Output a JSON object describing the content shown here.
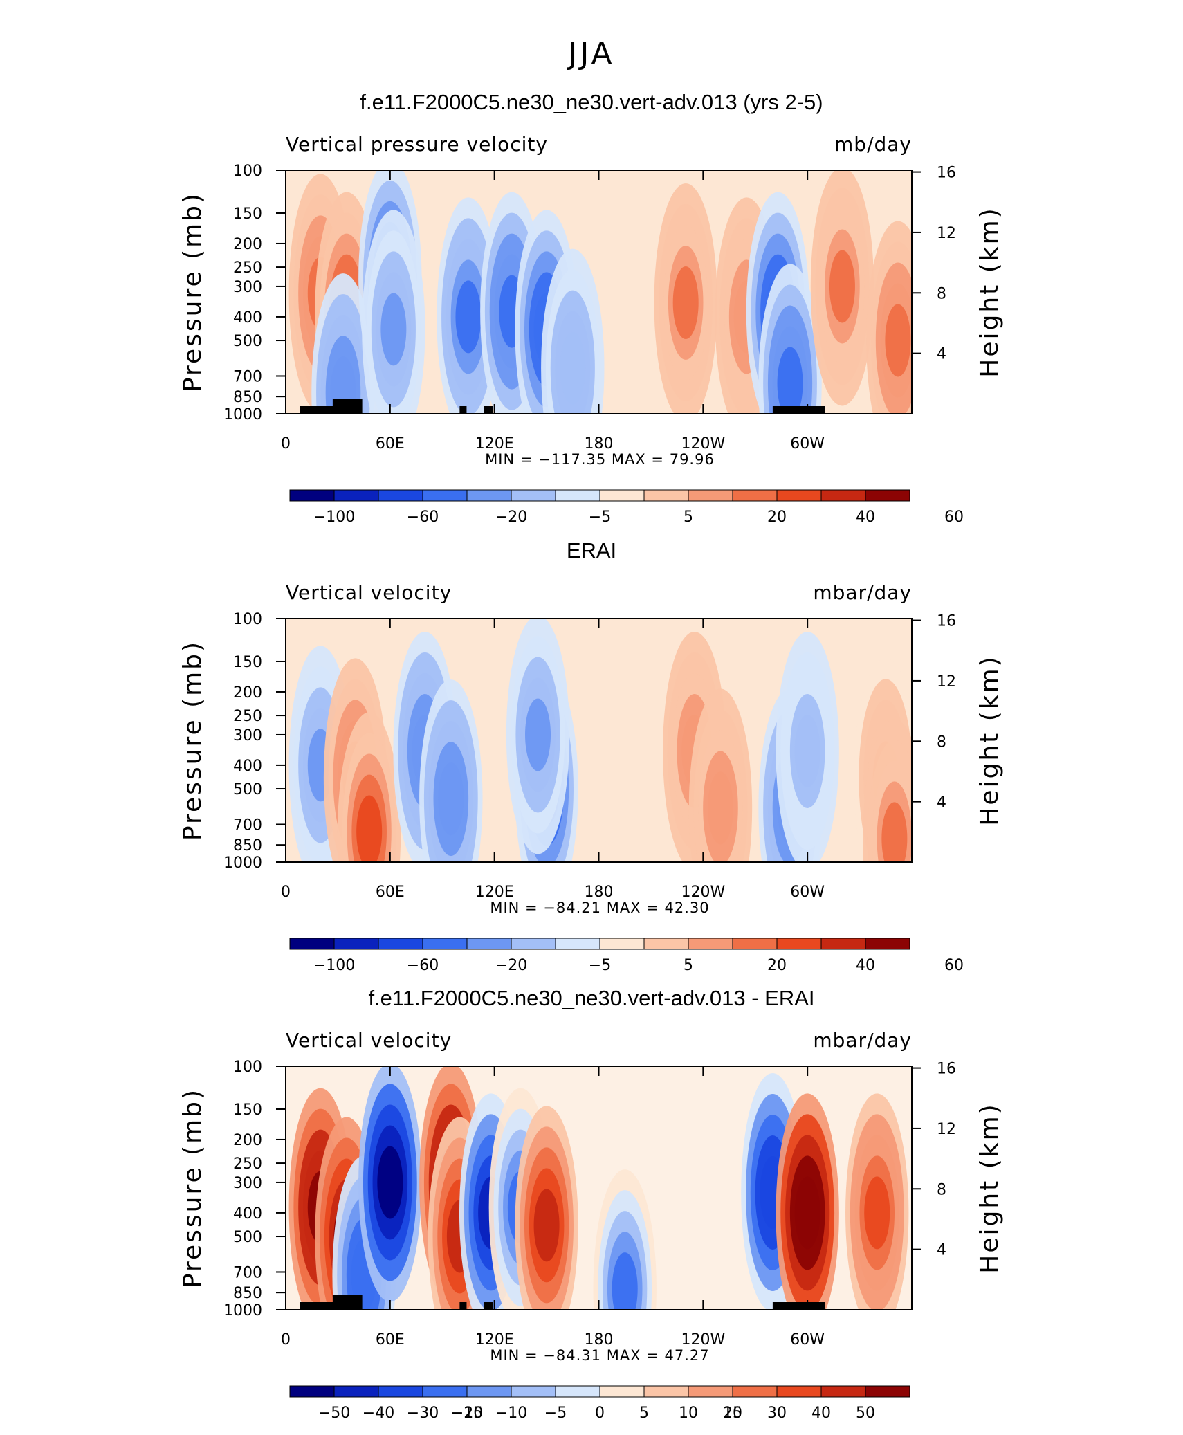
{
  "figure": {
    "title": "JJA"
  },
  "chart_data": [
    {
      "type": "heatmap",
      "title": "f.e11.F2000C5.ne30_ne30.vert-adv.013 (yrs 2-5)",
      "left_label": "Vertical pressure velocity",
      "right_label": "mb/day",
      "ylabel": "Pressure (mb)",
      "ylabel_right": "Height (km)",
      "x_ticks": [
        "0",
        "60E",
        "120E",
        "180",
        "120W",
        "60W"
      ],
      "x_tick_lon": [
        0,
        60,
        120,
        180,
        240,
        300
      ],
      "xlim": [
        0,
        360
      ],
      "y_ticks": [
        "100",
        "150",
        "200",
        "250",
        "300",
        "400",
        "500",
        "700",
        "850",
        "1000"
      ],
      "y_tick_p": [
        100,
        150,
        200,
        250,
        300,
        400,
        500,
        700,
        850,
        1000
      ],
      "ylim": [
        1000,
        100
      ],
      "y_scale": "log",
      "height_ticks": [
        "16",
        "12",
        "8",
        "4"
      ],
      "height_tick_km": [
        16,
        12,
        8,
        4
      ],
      "stats": "MIN = −117.35   MAX =   79.96",
      "min": -117.35,
      "max": 79.96,
      "colorbar_levels": [
        "−100",
        "−60",
        "−20",
        "−5",
        "5",
        "20",
        "40",
        "60"
      ],
      "features": [
        {
          "lon": 20,
          "p": 320,
          "value": 35
        },
        {
          "lon": 35,
          "p": 380,
          "value": 38
        },
        {
          "lon": 33,
          "p": 820,
          "value": -60
        },
        {
          "lon": 60,
          "p": 280,
          "value": -90
        },
        {
          "lon": 62,
          "p": 450,
          "value": -45
        },
        {
          "lon": 105,
          "p": 400,
          "value": -65
        },
        {
          "lon": 130,
          "p": 380,
          "value": -70
        },
        {
          "lon": 150,
          "p": 450,
          "value": -80
        },
        {
          "lon": 165,
          "p": 650,
          "value": -40
        },
        {
          "lon": 230,
          "p": 350,
          "value": 30
        },
        {
          "lon": 265,
          "p": 400,
          "value": 28
        },
        {
          "lon": 283,
          "p": 380,
          "value": -80
        },
        {
          "lon": 290,
          "p": 750,
          "value": -75
        },
        {
          "lon": 320,
          "p": 300,
          "value": 32
        },
        {
          "lon": 352,
          "p": 500,
          "value": 35
        }
      ]
    },
    {
      "type": "heatmap",
      "title": "ERAI",
      "left_label": "Vertical velocity",
      "right_label": "mbar/day",
      "ylabel": "Pressure (mb)",
      "ylabel_right": "Height (km)",
      "x_ticks": [
        "0",
        "60E",
        "120E",
        "180",
        "120W",
        "60W"
      ],
      "x_tick_lon": [
        0,
        60,
        120,
        180,
        240,
        300
      ],
      "xlim": [
        0,
        360
      ],
      "y_ticks": [
        "100",
        "150",
        "200",
        "250",
        "300",
        "400",
        "500",
        "700",
        "850",
        "1000"
      ],
      "y_tick_p": [
        100,
        150,
        200,
        250,
        300,
        400,
        500,
        700,
        850,
        1000
      ],
      "ylim": [
        1000,
        100
      ],
      "y_scale": "log",
      "height_ticks": [
        "16",
        "12",
        "8",
        "4"
      ],
      "height_tick_km": [
        16,
        12,
        8,
        4
      ],
      "stats": "MIN =  −84.21   MAX =   42.30",
      "min": -84.21,
      "max": 42.3,
      "colorbar_levels": [
        "−100",
        "−60",
        "−20",
        "−5",
        "5",
        "20",
        "40",
        "60"
      ],
      "features": [
        {
          "lon": 20,
          "p": 400,
          "value": -45
        },
        {
          "lon": 40,
          "p": 450,
          "value": 35
        },
        {
          "lon": 48,
          "p": 750,
          "value": 40
        },
        {
          "lon": 80,
          "p": 350,
          "value": -55
        },
        {
          "lon": 95,
          "p": 550,
          "value": -60
        },
        {
          "lon": 150,
          "p": 500,
          "value": -84
        },
        {
          "lon": 145,
          "p": 300,
          "value": -50
        },
        {
          "lon": 235,
          "p": 350,
          "value": 28
        },
        {
          "lon": 250,
          "p": 600,
          "value": 25
        },
        {
          "lon": 290,
          "p": 600,
          "value": -60
        },
        {
          "lon": 300,
          "p": 350,
          "value": -30
        },
        {
          "lon": 345,
          "p": 450,
          "value": 22
        },
        {
          "lon": 350,
          "p": 800,
          "value": 30
        }
      ]
    },
    {
      "type": "heatmap",
      "title": "f.e11.F2000C5.ne30_ne30.vert-adv.013 - ERAI",
      "left_label": "Vertical velocity",
      "right_label": "mbar/day",
      "ylabel": "Pressure (mb)",
      "ylabel_right": "Height (km)",
      "x_ticks": [
        "0",
        "60E",
        "120E",
        "180",
        "120W",
        "60W"
      ],
      "x_tick_lon": [
        0,
        60,
        120,
        180,
        240,
        300
      ],
      "xlim": [
        0,
        360
      ],
      "y_ticks": [
        "100",
        "150",
        "200",
        "250",
        "300",
        "400",
        "500",
        "700",
        "850",
        "1000"
      ],
      "y_tick_p": [
        100,
        150,
        200,
        250,
        300,
        400,
        500,
        700,
        850,
        1000
      ],
      "ylim": [
        1000,
        100
      ],
      "y_scale": "log",
      "height_ticks": [
        "16",
        "12",
        "8",
        "4"
      ],
      "height_tick_km": [
        16,
        12,
        8,
        4
      ],
      "stats": "MIN =  −84.31   MAX =   47.27",
      "min": -84.31,
      "max": 47.27,
      "colorbar_levels": [
        "−50",
        "−40",
        "−30",
        "−20",
        "−15",
        "−10",
        "−5",
        "0",
        "5",
        "10",
        "15",
        "20",
        "30",
        "40",
        "50"
      ],
      "features": [
        {
          "lon": 20,
          "p": 380,
          "value": 35
        },
        {
          "lon": 35,
          "p": 500,
          "value": 30
        },
        {
          "lon": 45,
          "p": 720,
          "value": -30
        },
        {
          "lon": 60,
          "p": 300,
          "value": -60
        },
        {
          "lon": 95,
          "p": 300,
          "value": 35
        },
        {
          "lon": 100,
          "p": 500,
          "value": 20
        },
        {
          "lon": 118,
          "p": 400,
          "value": -45
        },
        {
          "lon": 135,
          "p": 380,
          "value": -25
        },
        {
          "lon": 150,
          "p": 450,
          "value": 20
        },
        {
          "lon": 195,
          "p": 820,
          "value": -25
        },
        {
          "lon": 280,
          "p": 330,
          "value": -40
        },
        {
          "lon": 300,
          "p": 400,
          "value": 40
        },
        {
          "lon": 340,
          "p": 400,
          "value": 15
        }
      ]
    }
  ],
  "colormap": [
    "#00007f",
    "#0a22bd",
    "#1a47e0",
    "#3a6ff0",
    "#6d97f2",
    "#a3bff7",
    "#d6e6fb",
    "#fde7d4",
    "#fbc5a7",
    "#f59a77",
    "#ef6f46",
    "#e8481f",
    "#c62812",
    "#8c0404"
  ],
  "colormap_diff": [
    "#00007f",
    "#0a22bd",
    "#1a47e0",
    "#3a6ff0",
    "#6d97f2",
    "#a3bff7",
    "#d6e6fb",
    "#fde7d4",
    "#fbc5a7",
    "#f59a77",
    "#ef6f46",
    "#e8481f",
    "#c62812",
    "#8c0404"
  ]
}
